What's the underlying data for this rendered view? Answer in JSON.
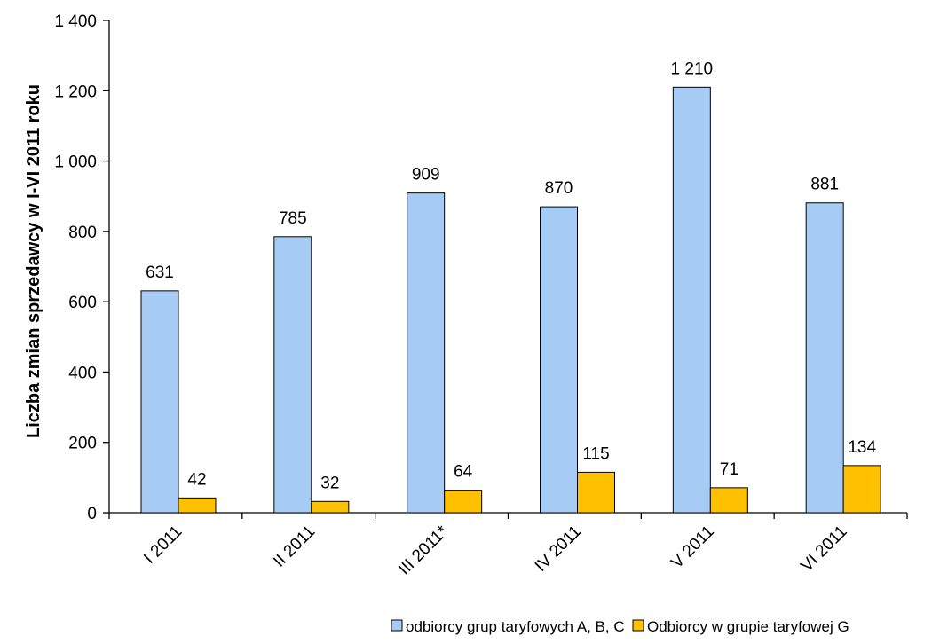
{
  "chart_data": {
    "type": "bar",
    "title": "",
    "xlabel": "",
    "ylabel": "Liczba zmian sprzedawcy w I-VI 2011 roku",
    "categories": [
      "I 2011",
      "II 2011",
      "III 2011*",
      "IV 2011",
      "V 2011",
      "VI 2011"
    ],
    "series": [
      {
        "name": "odbiorcy grup taryfowych A, B, C",
        "values": [
          631,
          785,
          909,
          870,
          1210,
          881
        ],
        "color": "#a6cbf5"
      },
      {
        "name": "Odbiorcy w grupie taryfowej G",
        "values": [
          42,
          32,
          64,
          115,
          71,
          134
        ],
        "color": "#ffc000"
      }
    ],
    "data_labels": [
      [
        "631",
        "785",
        "909",
        "870",
        "1 210",
        "881"
      ],
      [
        "42",
        "32",
        "64",
        "115",
        "71",
        "134"
      ]
    ],
    "ylim": [
      0,
      1400
    ],
    "yticks": [
      0,
      200,
      400,
      600,
      800,
      1000,
      1200,
      1400
    ],
    "ytick_labels": [
      "0",
      "200",
      "400",
      "600",
      "800",
      "1 000",
      "1 200",
      "1 400"
    ],
    "grid": false,
    "legend_position": "bottom"
  }
}
